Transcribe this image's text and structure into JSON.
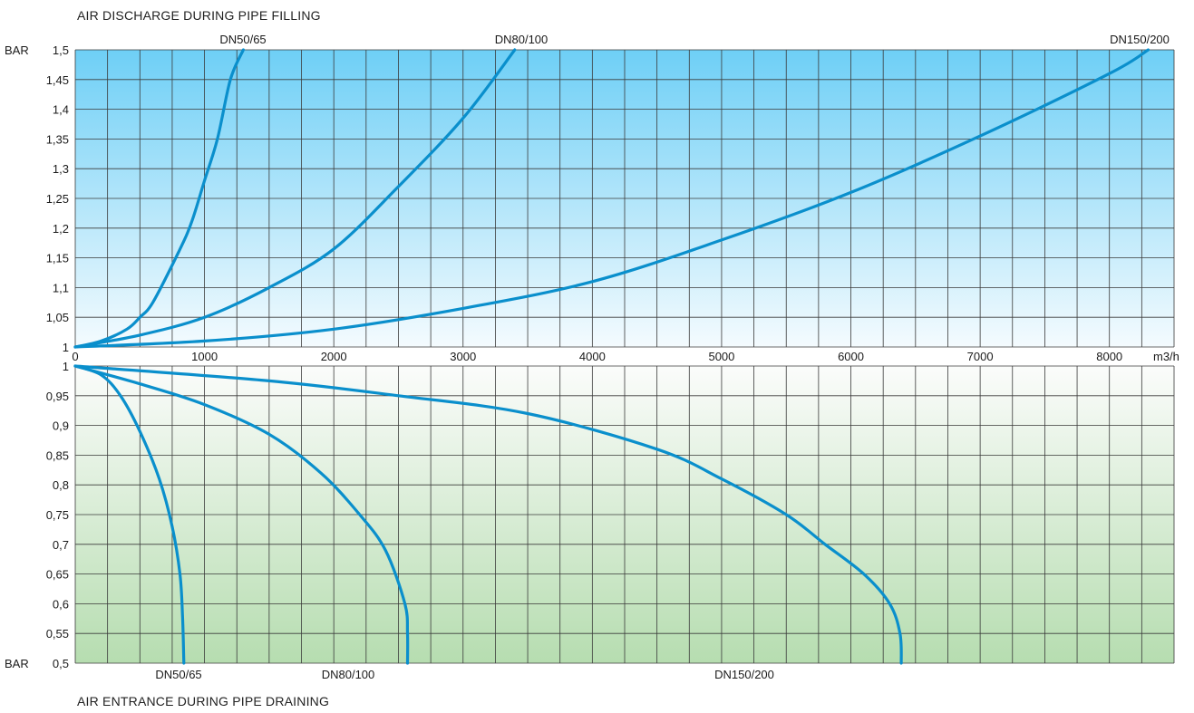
{
  "captions": {
    "top": "AIR DISCHARGE DURING PIPE FILLING",
    "bottom": "AIR ENTRANCE DURING PIPE DRAINING"
  },
  "colors": {
    "curve": "#0a8fcc",
    "grid": "#3a3a3a",
    "top_gradient_top": "#6ecff6",
    "top_gradient_bottom": "#f4fbfe",
    "bottom_gradient_top": "#fbfcfb",
    "bottom_gradient_bottom": "#b6ddb0"
  },
  "chart_data": [
    {
      "type": "line",
      "title": "AIR DISCHARGE DURING PIPE FILLING",
      "ylabel": "BAR",
      "xunit": "m3/h",
      "xlim": [
        0,
        8500
      ],
      "ylim": [
        1,
        1.5
      ],
      "x_ticks": [
        0,
        1000,
        2000,
        3000,
        4000,
        5000,
        6000,
        7000,
        8000
      ],
      "x_tick_labels": [
        "0",
        "1000",
        "2000",
        "3000",
        "4000",
        "5000",
        "6000",
        "7000",
        "8000"
      ],
      "y_ticks": [
        1,
        1.05,
        1.1,
        1.15,
        1.2,
        1.25,
        1.3,
        1.35,
        1.4,
        1.45,
        1.5
      ],
      "y_tick_labels": [
        "1",
        "1,05",
        "1,1",
        "1,15",
        "1,2",
        "1,25",
        "1,3",
        "1,35",
        "1,4",
        "1,45",
        "1,5"
      ],
      "grid": true,
      "series": [
        {
          "name": "DN50/65",
          "points": [
            [
              0,
              1
            ],
            [
              200,
              1.01
            ],
            [
              400,
              1.03
            ],
            [
              500,
              1.05
            ],
            [
              600,
              1.075
            ],
            [
              800,
              1.16
            ],
            [
              900,
              1.21
            ],
            [
              1000,
              1.28
            ],
            [
              1100,
              1.35
            ],
            [
              1200,
              1.45
            ],
            [
              1300,
              1.5
            ]
          ]
        },
        {
          "name": "DN80/100",
          "points": [
            [
              0,
              1
            ],
            [
              500,
              1.02
            ],
            [
              1000,
              1.05
            ],
            [
              1500,
              1.1
            ],
            [
              2000,
              1.165
            ],
            [
              2500,
              1.27
            ],
            [
              3000,
              1.385
            ],
            [
              3400,
              1.5
            ]
          ]
        },
        {
          "name": "DN150/200",
          "points": [
            [
              0,
              1
            ],
            [
              1000,
              1.01
            ],
            [
              2000,
              1.03
            ],
            [
              3000,
              1.065
            ],
            [
              4000,
              1.11
            ],
            [
              5000,
              1.18
            ],
            [
              6000,
              1.26
            ],
            [
              7000,
              1.355
            ],
            [
              8000,
              1.46
            ],
            [
              8300,
              1.5
            ]
          ]
        }
      ]
    },
    {
      "type": "line",
      "title": "AIR ENTRANCE DURING PIPE DRAINING",
      "ylabel": "BAR",
      "xunit": "m3/h",
      "xlim": [
        0,
        8500
      ],
      "ylim": [
        0.5,
        1
      ],
      "y_ticks": [
        0.5,
        0.55,
        0.6,
        0.65,
        0.7,
        0.75,
        0.8,
        0.85,
        0.9,
        0.95,
        1
      ],
      "y_tick_labels": [
        "0,5",
        "0,55",
        "0,6",
        "0,65",
        "0,7",
        "0,75",
        "0,8",
        "0,85",
        "0,9",
        "0,95",
        "1"
      ],
      "grid": true,
      "series": [
        {
          "name": "DN50/65",
          "points": [
            [
              0,
              1
            ],
            [
              200,
              0.985
            ],
            [
              350,
              0.95
            ],
            [
              500,
              0.89
            ],
            [
              650,
              0.81
            ],
            [
              750,
              0.73
            ],
            [
              810,
              0.65
            ],
            [
              830,
              0.58
            ],
            [
              840,
              0.5
            ]
          ]
        },
        {
          "name": "DN80/100",
          "points": [
            [
              0,
              1
            ],
            [
              500,
              0.97
            ],
            [
              1000,
              0.935
            ],
            [
              1500,
              0.885
            ],
            [
              1900,
              0.82
            ],
            [
              2200,
              0.75
            ],
            [
              2400,
              0.69
            ],
            [
              2550,
              0.6
            ],
            [
              2570,
              0.55
            ],
            [
              2570,
              0.5
            ]
          ]
        },
        {
          "name": "DN150/200",
          "points": [
            [
              0,
              1
            ],
            [
              1500,
              0.975
            ],
            [
              2500,
              0.95
            ],
            [
              3500,
              0.92
            ],
            [
              4500,
              0.86
            ],
            [
              5000,
              0.81
            ],
            [
              5500,
              0.75
            ],
            [
              5800,
              0.7
            ],
            [
              6100,
              0.65
            ],
            [
              6300,
              0.6
            ],
            [
              6380,
              0.55
            ],
            [
              6390,
              0.5
            ]
          ]
        }
      ]
    }
  ],
  "labels": {
    "bar_top": "BAR",
    "bar_bottom": "BAR",
    "unit": "m3/h",
    "top_series_labels": [
      "DN50/65",
      "DN80/100",
      "DN150/200"
    ],
    "bottom_series_labels": [
      "DN50/65",
      "DN80/100",
      "DN150/200"
    ]
  }
}
